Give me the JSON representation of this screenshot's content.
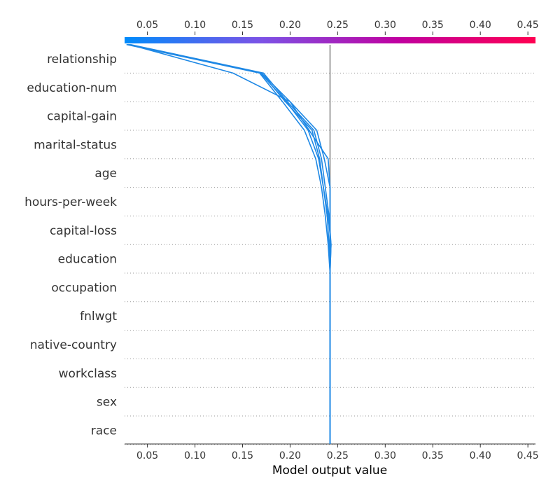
{
  "chart_data": {
    "type": "decision-plot",
    "xlabel": "Model output value",
    "xlim": [
      0.026,
      0.458
    ],
    "xticks": [
      "0.05",
      "0.10",
      "0.15",
      "0.20",
      "0.25",
      "0.30",
      "0.35",
      "0.40",
      "0.45"
    ],
    "xtick_values": [
      0.05,
      0.1,
      0.15,
      0.2,
      0.25,
      0.3,
      0.35,
      0.4,
      0.45
    ],
    "base_value": 0.242,
    "features": [
      "relationship",
      "education-num",
      "capital-gain",
      "marital-status",
      "age",
      "hours-per-week",
      "capital-loss",
      "education",
      "occupation",
      "fnlwgt",
      "native-country",
      "workclass",
      "sex",
      "race"
    ],
    "colorbar": {
      "colors": [
        "#008bfb",
        "#7c52e6",
        "#c000a0",
        "#ff0051"
      ]
    },
    "line_color": "#1e88e5",
    "series": [
      {
        "values": [
          0.242,
          0.242,
          0.242,
          0.242,
          0.242,
          0.242,
          0.243,
          0.241,
          0.237,
          0.233,
          0.225,
          0.197,
          0.172,
          0.032
        ]
      },
      {
        "values": [
          0.242,
          0.242,
          0.242,
          0.242,
          0.242,
          0.242,
          0.243,
          0.24,
          0.235,
          0.231,
          0.223,
          0.195,
          0.17,
          0.03
        ]
      },
      {
        "values": [
          0.242,
          0.242,
          0.242,
          0.242,
          0.242,
          0.242,
          0.242,
          0.242,
          0.242,
          0.236,
          0.228,
          0.2,
          0.17,
          0.029
        ]
      },
      {
        "values": [
          0.242,
          0.242,
          0.242,
          0.242,
          0.242,
          0.242,
          0.242,
          0.242,
          0.242,
          0.24,
          0.22,
          0.2,
          0.14,
          0.031
        ]
      },
      {
        "values": [
          0.242,
          0.242,
          0.242,
          0.242,
          0.242,
          0.242,
          0.24,
          0.237,
          0.233,
          0.227,
          0.215,
          0.192,
          0.168,
          0.028
        ]
      },
      {
        "values": [
          0.242,
          0.242,
          0.242,
          0.242,
          0.242,
          0.242,
          0.241,
          0.239,
          0.235,
          0.23,
          0.219,
          0.196,
          0.169,
          0.03
        ]
      }
    ]
  }
}
